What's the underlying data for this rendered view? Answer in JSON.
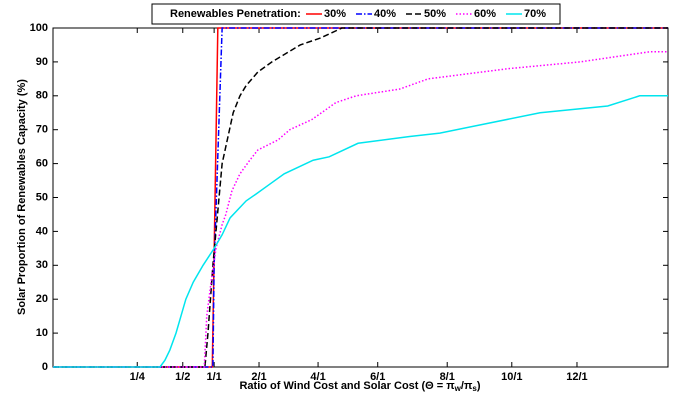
{
  "chart_data": {
    "type": "line",
    "legend_title": "Renewables Penetration:",
    "ylabel": "Solar Proportion of Renewables Capacity (%)",
    "xlabel": [
      "Ratio of Wind Cost and Solar Cost (Θ = π",
      "w",
      "/π",
      "s",
      ")"
    ],
    "xlim": [
      0,
      100
    ],
    "ylim": [
      0,
      100
    ],
    "xticks": [
      {
        "value": 13.7,
        "label": "1/4"
      },
      {
        "value": 21.1,
        "label": "1/2"
      },
      {
        "value": 26.2,
        "label": "1/1"
      },
      {
        "value": 33.5,
        "label": "2/1"
      },
      {
        "value": 43.1,
        "label": "4/1"
      },
      {
        "value": 52.8,
        "label": "6/1"
      },
      {
        "value": 64.1,
        "label": "8/1"
      },
      {
        "value": 74.6,
        "label": "10/1"
      },
      {
        "value": 85.2,
        "label": "12/1"
      }
    ],
    "yticks": [
      0,
      10,
      20,
      30,
      40,
      50,
      60,
      70,
      80,
      90,
      100
    ],
    "grid": false,
    "series": [
      {
        "name": "30%",
        "color": "#ff0000",
        "dash": "none",
        "x": [
          0,
          25.9,
          26.8,
          100
        ],
        "values": [
          0,
          0,
          100,
          100
        ]
      },
      {
        "name": "40%",
        "color": "#0000ff",
        "dash": "6,2,1.5,2",
        "x": [
          0,
          26.0,
          26.2,
          27.5,
          100
        ],
        "values": [
          0,
          0,
          30,
          100,
          100
        ]
      },
      {
        "name": "50%",
        "color": "#000000",
        "dash": "6,3",
        "x": [
          0,
          24.7,
          25.2,
          26.0,
          27.5,
          28.1,
          29.3,
          30.4,
          31.4,
          33.3,
          35.6,
          40.2,
          43.4,
          47.0,
          100
        ],
        "values": [
          0,
          0,
          10,
          30,
          60,
          65,
          75,
          80,
          83,
          87,
          90,
          95,
          97,
          100,
          100
        ]
      },
      {
        "name": "60%",
        "color": "#ff00ff",
        "dash": "1.5,2",
        "x": [
          0,
          24.6,
          25.0,
          25.7,
          26.5,
          27.5,
          28.1,
          29.1,
          30.4,
          32.0,
          33.3,
          36.6,
          38.5,
          42.1,
          46.0,
          49.3,
          56.4,
          61.0,
          74.0,
          85.7,
          97.1,
          100
        ],
        "values": [
          0,
          0,
          15,
          25,
          35,
          42,
          45,
          52,
          57,
          61,
          64,
          67,
          70,
          73,
          78,
          80,
          82,
          85,
          88,
          90,
          93,
          93
        ]
      },
      {
        "name": "70%",
        "color": "#00e5ee",
        "dash": "none",
        "x": [
          0,
          17.4,
          18.2,
          19.0,
          20.0,
          20.8,
          21.6,
          22.8,
          24.4,
          26.2,
          27.5,
          28.8,
          31.4,
          33.0,
          35.3,
          37.6,
          42.3,
          44.9,
          49.6,
          58.0,
          62.9,
          79.2,
          90.2,
          95.4,
          100
        ],
        "values": [
          0,
          0,
          2,
          5,
          10,
          15,
          20,
          25,
          30,
          35,
          39,
          44,
          49,
          51,
          54,
          57,
          61,
          62,
          66,
          68,
          69,
          75,
          77,
          80,
          80
        ]
      }
    ]
  }
}
